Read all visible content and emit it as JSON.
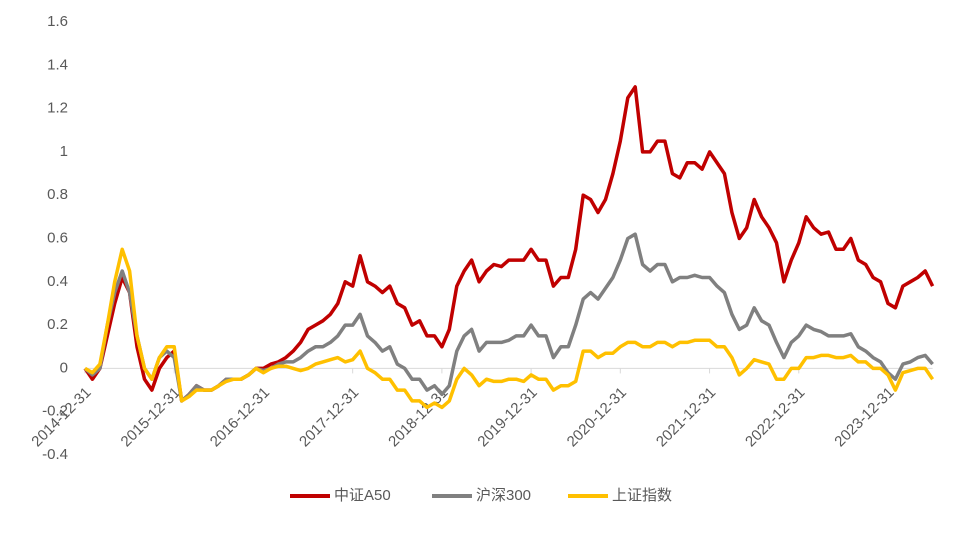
{
  "chart_data": {
    "type": "line",
    "categories": [
      "2014-12-31",
      null,
      null,
      null,
      null,
      null,
      null,
      null,
      null,
      null,
      null,
      null,
      "2015-12-31",
      null,
      null,
      null,
      null,
      null,
      null,
      null,
      null,
      null,
      null,
      null,
      "2016-12-31",
      null,
      null,
      null,
      null,
      null,
      null,
      null,
      null,
      null,
      null,
      null,
      "2017-12-31",
      null,
      null,
      null,
      null,
      null,
      null,
      null,
      null,
      null,
      null,
      null,
      "2018-12-31",
      null,
      null,
      null,
      null,
      null,
      null,
      null,
      null,
      null,
      null,
      null,
      "2019-12-31",
      null,
      null,
      null,
      null,
      null,
      null,
      null,
      null,
      null,
      null,
      null,
      "2020-12-31",
      null,
      null,
      null,
      null,
      null,
      null,
      null,
      null,
      null,
      null,
      null,
      "2021-12-31",
      null,
      null,
      null,
      null,
      null,
      null,
      null,
      null,
      null,
      null,
      null,
      "2022-12-31",
      null,
      null,
      null,
      null,
      null,
      null,
      null,
      null,
      null,
      null,
      null,
      "2023-12-31",
      null,
      null,
      null,
      null,
      null,
      null
    ],
    "series": [
      {
        "name": "中证A50",
        "color": "#c00000",
        "values": [
          0,
          -0.05,
          0.0,
          0.15,
          0.3,
          0.42,
          0.35,
          0.1,
          -0.05,
          -0.1,
          0.0,
          0.05,
          0.08,
          -0.15,
          -0.12,
          -0.08,
          -0.1,
          -0.1,
          -0.08,
          -0.05,
          -0.05,
          -0.05,
          -0.03,
          0.0,
          0.0,
          0.02,
          0.03,
          0.05,
          0.08,
          0.12,
          0.18,
          0.2,
          0.22,
          0.25,
          0.3,
          0.4,
          0.38,
          0.52,
          0.4,
          0.38,
          0.35,
          0.38,
          0.3,
          0.28,
          0.2,
          0.22,
          0.15,
          0.15,
          0.1,
          0.18,
          0.38,
          0.45,
          0.5,
          0.4,
          0.45,
          0.48,
          0.47,
          0.5,
          0.5,
          0.5,
          0.55,
          0.5,
          0.5,
          0.38,
          0.42,
          0.42,
          0.55,
          0.8,
          0.78,
          0.72,
          0.78,
          0.9,
          1.05,
          1.25,
          1.3,
          1.0,
          1.0,
          1.05,
          1.05,
          0.9,
          0.88,
          0.95,
          0.95,
          0.92,
          1.0,
          0.95,
          0.9,
          0.72,
          0.6,
          0.65,
          0.78,
          0.7,
          0.65,
          0.58,
          0.4,
          0.5,
          0.58,
          0.7,
          0.65,
          0.62,
          0.63,
          0.55,
          0.55,
          0.6,
          0.5,
          0.48,
          0.42,
          0.4,
          0.3,
          0.28,
          0.38,
          0.4,
          0.42,
          0.45,
          0.38
        ]
      },
      {
        "name": "沪深300",
        "color": "#808080",
        "values": [
          0,
          -0.03,
          0.0,
          0.2,
          0.35,
          0.45,
          0.35,
          0.15,
          0.0,
          -0.05,
          0.05,
          0.08,
          0.05,
          -0.15,
          -0.12,
          -0.08,
          -0.1,
          -0.1,
          -0.08,
          -0.05,
          -0.05,
          -0.05,
          -0.03,
          0.0,
          -0.01,
          0.0,
          0.02,
          0.03,
          0.03,
          0.05,
          0.08,
          0.1,
          0.1,
          0.12,
          0.15,
          0.2,
          0.2,
          0.25,
          0.15,
          0.12,
          0.08,
          0.1,
          0.02,
          0.0,
          -0.05,
          -0.05,
          -0.1,
          -0.08,
          -0.12,
          -0.08,
          0.08,
          0.15,
          0.18,
          0.08,
          0.12,
          0.12,
          0.12,
          0.13,
          0.15,
          0.15,
          0.2,
          0.15,
          0.15,
          0.05,
          0.1,
          0.1,
          0.2,
          0.32,
          0.35,
          0.32,
          0.37,
          0.42,
          0.5,
          0.6,
          0.62,
          0.48,
          0.45,
          0.48,
          0.48,
          0.4,
          0.42,
          0.42,
          0.43,
          0.42,
          0.42,
          0.38,
          0.35,
          0.25,
          0.18,
          0.2,
          0.28,
          0.22,
          0.2,
          0.12,
          0.05,
          0.12,
          0.15,
          0.2,
          0.18,
          0.17,
          0.15,
          0.15,
          0.15,
          0.16,
          0.1,
          0.08,
          0.05,
          0.03,
          -0.02,
          -0.05,
          0.02,
          0.03,
          0.05,
          0.06,
          0.02
        ]
      },
      {
        "name": "上证指数",
        "color": "#ffc000",
        "values": [
          0,
          -0.02,
          0.02,
          0.2,
          0.4,
          0.55,
          0.45,
          0.15,
          0.0,
          -0.05,
          0.05,
          0.1,
          0.1,
          -0.15,
          -0.13,
          -0.1,
          -0.1,
          -0.1,
          -0.08,
          -0.06,
          -0.05,
          -0.05,
          -0.03,
          0.0,
          -0.02,
          0.0,
          0.01,
          0.01,
          0.0,
          -0.01,
          0.0,
          0.02,
          0.03,
          0.04,
          0.05,
          0.03,
          0.04,
          0.08,
          0.0,
          -0.02,
          -0.05,
          -0.05,
          -0.1,
          -0.1,
          -0.15,
          -0.15,
          -0.18,
          -0.16,
          -0.18,
          -0.15,
          -0.05,
          0.0,
          -0.03,
          -0.08,
          -0.05,
          -0.06,
          -0.06,
          -0.05,
          -0.05,
          -0.06,
          -0.03,
          -0.05,
          -0.05,
          -0.1,
          -0.08,
          -0.08,
          -0.06,
          0.08,
          0.08,
          0.05,
          0.07,
          0.07,
          0.1,
          0.12,
          0.12,
          0.1,
          0.1,
          0.12,
          0.12,
          0.1,
          0.12,
          0.12,
          0.13,
          0.13,
          0.13,
          0.1,
          0.1,
          0.05,
          -0.03,
          0.0,
          0.04,
          0.03,
          0.02,
          -0.05,
          -0.05,
          0.0,
          0.0,
          0.05,
          0.05,
          0.06,
          0.06,
          0.05,
          0.05,
          0.06,
          0.03,
          0.03,
          0.0,
          0.0,
          -0.03,
          -0.1,
          -0.02,
          -0.01,
          0.0,
          0.0,
          -0.05
        ]
      }
    ],
    "ylim": [
      -0.4,
      1.6
    ],
    "yticks": [
      -0.4,
      -0.2,
      0,
      0.2,
      0.4,
      0.6,
      0.8,
      1,
      1.2,
      1.4,
      1.6
    ]
  }
}
